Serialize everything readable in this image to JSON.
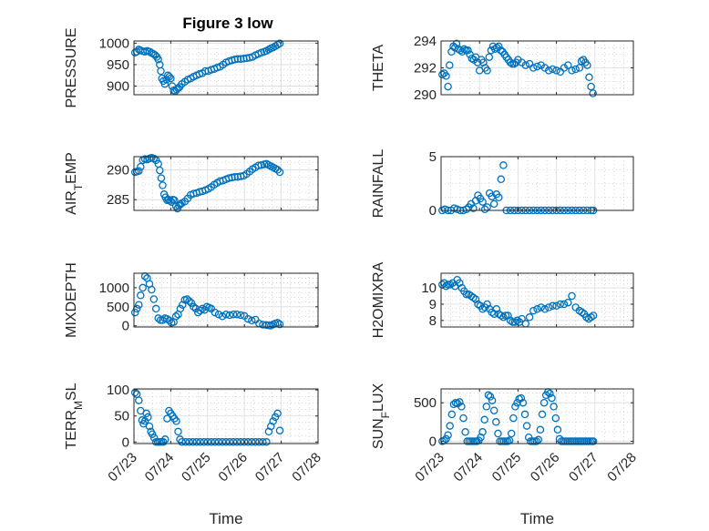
{
  "figure": {
    "title": "Figure 3 low"
  },
  "colors": {
    "marker": "#0072bd",
    "axis": "#262626"
  },
  "chart_data": [
    {
      "type": "scatter",
      "title": "Figure 3 low",
      "ylabel": "PRESSURE",
      "xlabel": "",
      "xlim": [
        0,
        5
      ],
      "ylim": [
        880,
        1005
      ],
      "yticks": [
        900,
        950,
        1000
      ],
      "xticks": [
        0,
        1,
        2,
        3,
        4,
        5
      ],
      "xticklabels": [
        "07/23",
        "07/24",
        "07/25",
        "07/26",
        "07/27",
        "07/28"
      ],
      "grid": true,
      "x": [
        0.03,
        0.08,
        0.13,
        0.18,
        0.24,
        0.3,
        0.36,
        0.42,
        0.48,
        0.53,
        0.58,
        0.62,
        0.66,
        0.7,
        0.73,
        0.76,
        0.8,
        0.84,
        0.88,
        0.92,
        0.96,
        1.0,
        1.04,
        1.08,
        1.12,
        1.16,
        1.2,
        1.24,
        1.3,
        1.38,
        1.46,
        1.54,
        1.62,
        1.7,
        1.78,
        1.86,
        1.94,
        2.02,
        2.1,
        2.18,
        2.26,
        2.34,
        2.42,
        2.5,
        2.58,
        2.66,
        2.74,
        2.82,
        2.9,
        2.98,
        3.06,
        3.14,
        3.22,
        3.3,
        3.38,
        3.46,
        3.54,
        3.6,
        3.66,
        3.72,
        3.78,
        3.84,
        3.9,
        3.96
      ],
      "y": [
        978,
        980,
        985,
        983,
        981,
        980,
        982,
        980,
        977,
        975,
        972,
        968,
        962,
        950,
        935,
        918,
        912,
        905,
        915,
        925,
        922,
        918,
        900,
        890,
        888,
        892,
        895,
        898,
        905,
        910,
        915,
        918,
        922,
        925,
        928,
        930,
        935,
        935,
        938,
        940,
        943,
        945,
        950,
        955,
        958,
        960,
        962,
        963,
        963,
        964,
        965,
        966,
        968,
        972,
        975,
        978,
        980,
        982,
        985,
        988,
        990,
        993,
        996,
        999
      ],
      "series": []
    },
    {
      "type": "scatter",
      "title": "",
      "ylabel": "THETA",
      "xlabel": "",
      "xlim": [
        0,
        5
      ],
      "ylim": [
        290,
        294
      ],
      "yticks": [
        290,
        292,
        294
      ],
      "xticks": [
        0,
        1,
        2,
        3,
        4,
        5
      ],
      "xticklabels": [
        "07/23",
        "07/24",
        "07/25",
        "07/26",
        "07/27",
        "07/28"
      ],
      "grid": true,
      "x": [
        0.03,
        0.08,
        0.13,
        0.18,
        0.22,
        0.27,
        0.32,
        0.36,
        0.4,
        0.45,
        0.5,
        0.55,
        0.6,
        0.65,
        0.7,
        0.75,
        0.8,
        0.85,
        0.9,
        0.95,
        1.0,
        1.05,
        1.1,
        1.15,
        1.2,
        1.25,
        1.3,
        1.35,
        1.4,
        1.45,
        1.5,
        1.55,
        1.6,
        1.65,
        1.7,
        1.75,
        1.8,
        1.85,
        1.9,
        1.95,
        2.0,
        2.1,
        2.2,
        2.3,
        2.4,
        2.5,
        2.6,
        2.7,
        2.8,
        2.9,
        3.0,
        3.1,
        3.2,
        3.3,
        3.4,
        3.5,
        3.6,
        3.65,
        3.7,
        3.75,
        3.8,
        3.85,
        3.9,
        3.95
      ],
      "y": [
        291.5,
        291.6,
        291.4,
        290.6,
        292.2,
        293.2,
        293.6,
        293.5,
        293.8,
        293.4,
        293.3,
        293.2,
        293.4,
        293.3,
        293.3,
        293.0,
        292.7,
        292.6,
        292.8,
        292.4,
        291.8,
        292.6,
        292.4,
        292.0,
        291.8,
        292.8,
        293.3,
        293.6,
        293.4,
        293.5,
        293.6,
        293.3,
        293.2,
        293.0,
        292.8,
        292.6,
        292.4,
        292.3,
        292.3,
        292.4,
        292.6,
        292.4,
        292.2,
        292.3,
        292.0,
        292.1,
        292.2,
        292.0,
        291.8,
        291.9,
        291.8,
        291.7,
        292.0,
        292.2,
        291.8,
        291.9,
        292.0,
        292.5,
        292.6,
        292.4,
        292.2,
        291.3,
        290.6,
        290.1
      ],
      "series": []
    },
    {
      "type": "scatter",
      "title": "",
      "ylabel": "AIR_TEMP",
      "xlabel": "",
      "xlim": [
        0,
        5
      ],
      "ylim": [
        283.2,
        292.2
      ],
      "yticks": [
        285,
        290
      ],
      "xticks": [
        0,
        1,
        2,
        3,
        4,
        5
      ],
      "xticklabels": [
        "07/23",
        "07/24",
        "07/25",
        "07/26",
        "07/27",
        "07/28"
      ],
      "grid": true,
      "x": [
        0.03,
        0.08,
        0.13,
        0.18,
        0.24,
        0.3,
        0.36,
        0.42,
        0.48,
        0.54,
        0.6,
        0.66,
        0.7,
        0.74,
        0.78,
        0.82,
        0.86,
        0.9,
        0.94,
        0.98,
        1.02,
        1.06,
        1.1,
        1.14,
        1.18,
        1.22,
        1.26,
        1.3,
        1.38,
        1.46,
        1.54,
        1.62,
        1.7,
        1.78,
        1.86,
        1.94,
        2.02,
        2.1,
        2.18,
        2.26,
        2.34,
        2.42,
        2.5,
        2.58,
        2.66,
        2.74,
        2.82,
        2.9,
        2.98,
        3.06,
        3.14,
        3.22,
        3.3,
        3.38,
        3.46,
        3.54,
        3.6,
        3.66,
        3.72,
        3.78,
        3.84,
        3.9,
        3.96
      ],
      "y": [
        289.6,
        289.7,
        289.8,
        290.5,
        291.6,
        291.8,
        291.7,
        291.9,
        292.0,
        291.9,
        291.6,
        291.0,
        289.9,
        288.6,
        287.4,
        285.9,
        285.4,
        284.9,
        285.0,
        284.8,
        284.6,
        285.0,
        284.9,
        283.9,
        283.5,
        284.0,
        284.2,
        284.4,
        284.7,
        285.2,
        285.8,
        286.0,
        286.1,
        286.3,
        286.4,
        286.6,
        286.8,
        287.1,
        287.5,
        287.8,
        288.1,
        288.2,
        288.4,
        288.6,
        288.7,
        288.8,
        288.8,
        288.9,
        289.0,
        289.3,
        289.7,
        290.1,
        290.4,
        290.7,
        290.8,
        290.9,
        291.0,
        290.8,
        290.6,
        290.4,
        290.2,
        290.0,
        289.6
      ],
      "series": []
    },
    {
      "type": "scatter",
      "title": "",
      "ylabel": "RAINFALL",
      "xlabel": "",
      "xlim": [
        0,
        5
      ],
      "ylim": [
        0,
        5
      ],
      "yticks": [
        0,
        5
      ],
      "xticks": [
        0,
        1,
        2,
        3,
        4,
        5
      ],
      "xticklabels": [
        "07/23",
        "07/24",
        "07/25",
        "07/26",
        "07/27",
        "07/28"
      ],
      "grid": true,
      "x": [
        0.03,
        0.1,
        0.18,
        0.26,
        0.34,
        0.42,
        0.5,
        0.58,
        0.66,
        0.72,
        0.78,
        0.84,
        0.9,
        0.96,
        1.02,
        1.08,
        1.14,
        1.2,
        1.26,
        1.32,
        1.38,
        1.44,
        1.5,
        1.56,
        1.62,
        1.7,
        1.8,
        1.9,
        2.0,
        2.1,
        2.2,
        2.3,
        2.4,
        2.5,
        2.6,
        2.7,
        2.8,
        2.9,
        3.0,
        3.1,
        3.2,
        3.3,
        3.4,
        3.5,
        3.6,
        3.7,
        3.8,
        3.9,
        3.96
      ],
      "y": [
        0.0,
        0.1,
        0.0,
        0.0,
        0.2,
        0.1,
        0.0,
        0.0,
        0.1,
        0.3,
        0.6,
        0.2,
        0.9,
        1.4,
        1.1,
        0.8,
        0.1,
        0.3,
        1.6,
        1.3,
        0.6,
        1.5,
        1.2,
        2.9,
        4.2,
        0.0,
        0.0,
        0.0,
        0.0,
        0.0,
        0.0,
        0.0,
        0.0,
        0.0,
        0.0,
        0.0,
        0.0,
        0.0,
        0.0,
        0.0,
        0.0,
        0.0,
        0.0,
        0.0,
        0.0,
        0.0,
        0.0,
        0.0,
        0.0
      ],
      "series": []
    },
    {
      "type": "scatter",
      "title": "",
      "ylabel": "MIXDEPTH",
      "xlabel": "",
      "xlim": [
        0,
        5
      ],
      "ylim": [
        -30,
        1380
      ],
      "yticks": [
        0,
        500,
        1000
      ],
      "xticks": [
        0,
        1,
        2,
        3,
        4,
        5
      ],
      "xticklabels": [
        "07/23",
        "07/24",
        "07/25",
        "07/26",
        "07/27",
        "07/28"
      ],
      "grid": true,
      "x": [
        0.03,
        0.08,
        0.13,
        0.18,
        0.24,
        0.3,
        0.36,
        0.42,
        0.48,
        0.54,
        0.6,
        0.66,
        0.72,
        0.78,
        0.84,
        0.9,
        0.96,
        1.02,
        1.08,
        1.14,
        1.2,
        1.26,
        1.32,
        1.38,
        1.44,
        1.5,
        1.56,
        1.62,
        1.68,
        1.74,
        1.8,
        1.86,
        1.92,
        1.98,
        2.04,
        2.1,
        2.2,
        2.3,
        2.4,
        2.5,
        2.6,
        2.7,
        2.8,
        2.9,
        3.0,
        3.1,
        3.2,
        3.3,
        3.4,
        3.5,
        3.6,
        3.66,
        3.72,
        3.78,
        3.84,
        3.9,
        3.96
      ],
      "y": [
        350,
        450,
        550,
        800,
        1000,
        1300,
        1250,
        1100,
        950,
        700,
        450,
        200,
        150,
        150,
        200,
        180,
        140,
        80,
        100,
        250,
        300,
        450,
        550,
        680,
        700,
        650,
        600,
        500,
        450,
        350,
        400,
        450,
        420,
        500,
        480,
        450,
        350,
        300,
        250,
        300,
        280,
        300,
        300,
        280,
        260,
        180,
        140,
        160,
        60,
        30,
        20,
        10,
        5,
        40,
        60,
        80,
        40
      ],
      "series": []
    },
    {
      "type": "scatter",
      "title": "",
      "ylabel": "H2OMIXRA",
      "xlabel": "",
      "xlim": [
        0,
        5
      ],
      "ylim": [
        7.6,
        10.9
      ],
      "yticks": [
        8,
        9,
        10
      ],
      "xticks": [
        0,
        1,
        2,
        3,
        4,
        5
      ],
      "xticklabels": [
        "07/23",
        "07/24",
        "07/25",
        "07/26",
        "07/27",
        "07/28"
      ],
      "grid": true,
      "x": [
        0.03,
        0.08,
        0.13,
        0.18,
        0.24,
        0.3,
        0.36,
        0.42,
        0.48,
        0.54,
        0.6,
        0.66,
        0.72,
        0.78,
        0.84,
        0.9,
        0.96,
        1.02,
        1.08,
        1.14,
        1.2,
        1.26,
        1.32,
        1.38,
        1.44,
        1.5,
        1.56,
        1.62,
        1.68,
        1.74,
        1.8,
        1.86,
        1.92,
        1.98,
        2.04,
        2.1,
        2.2,
        2.3,
        2.4,
        2.5,
        2.6,
        2.7,
        2.8,
        2.9,
        3.0,
        3.1,
        3.2,
        3.3,
        3.4,
        3.5,
        3.6,
        3.66,
        3.72,
        3.78,
        3.84,
        3.9,
        3.96
      ],
      "y": [
        10.2,
        10.3,
        10.1,
        10.2,
        10.2,
        10.3,
        10.1,
        10.5,
        10.3,
        10.0,
        9.8,
        9.6,
        9.6,
        9.5,
        9.4,
        9.3,
        9.0,
        8.9,
        8.7,
        8.8,
        9.0,
        8.7,
        8.5,
        8.4,
        8.7,
        8.4,
        8.3,
        8.2,
        8.3,
        8.3,
        8.0,
        7.9,
        7.9,
        8.0,
        7.9,
        8.1,
        7.8,
        8.2,
        8.6,
        8.7,
        8.8,
        8.7,
        8.8,
        8.9,
        8.9,
        9.0,
        9.0,
        9.1,
        9.5,
        8.8,
        8.6,
        8.5,
        8.4,
        8.2,
        8.1,
        8.2,
        8.3
      ],
      "series": []
    },
    {
      "type": "scatter",
      "title": "",
      "ylabel": "TERR_MSL",
      "xlabel": "Time",
      "xlim": [
        0,
        5
      ],
      "ylim": [
        -3,
        102
      ],
      "yticks": [
        0,
        50,
        100
      ],
      "xticks": [
        0,
        1,
        2,
        3,
        4,
        5
      ],
      "xticklabels": [
        "07/23",
        "07/24",
        "07/25",
        "07/26",
        "07/27",
        "07/28"
      ],
      "grid": true,
      "x": [
        0.03,
        0.08,
        0.13,
        0.18,
        0.22,
        0.26,
        0.3,
        0.34,
        0.38,
        0.42,
        0.46,
        0.5,
        0.55,
        0.6,
        0.65,
        0.7,
        0.75,
        0.8,
        0.85,
        0.9,
        0.95,
        1.0,
        1.05,
        1.1,
        1.15,
        1.2,
        1.25,
        1.3,
        1.4,
        1.5,
        1.6,
        1.7,
        1.8,
        1.9,
        2.0,
        2.1,
        2.2,
        2.3,
        2.4,
        2.5,
        2.6,
        2.7,
        2.8,
        2.9,
        3.0,
        3.1,
        3.2,
        3.3,
        3.4,
        3.5,
        3.6,
        3.66,
        3.72,
        3.78,
        3.84,
        3.9,
        3.96
      ],
      "y": [
        95,
        92,
        80,
        60,
        42,
        35,
        40,
        55,
        48,
        30,
        20,
        15,
        8,
        0,
        0,
        0,
        0,
        0,
        5,
        45,
        60,
        55,
        50,
        45,
        40,
        20,
        5,
        0,
        0,
        0,
        0,
        0,
        0,
        0,
        0,
        0,
        0,
        0,
        0,
        0,
        0,
        0,
        0,
        0,
        0,
        0,
        0,
        0,
        0,
        0,
        0,
        20,
        30,
        40,
        48,
        55,
        22
      ],
      "series": []
    },
    {
      "type": "scatter",
      "title": "",
      "ylabel": "SUN_FLUX",
      "xlabel": "Time",
      "xlim": [
        0,
        5
      ],
      "ylim": [
        -30,
        680
      ],
      "yticks": [
        0,
        500
      ],
      "xticks": [
        0,
        1,
        2,
        3,
        4,
        5
      ],
      "xticklabels": [
        "07/23",
        "07/24",
        "07/25",
        "07/26",
        "07/27",
        "07/28"
      ],
      "grid": true,
      "x": [
        0.03,
        0.08,
        0.13,
        0.18,
        0.23,
        0.28,
        0.33,
        0.38,
        0.43,
        0.48,
        0.53,
        0.58,
        0.63,
        0.68,
        0.73,
        0.78,
        0.83,
        0.88,
        0.93,
        0.98,
        1.03,
        1.08,
        1.13,
        1.18,
        1.23,
        1.28,
        1.33,
        1.38,
        1.43,
        1.48,
        1.53,
        1.58,
        1.63,
        1.68,
        1.73,
        1.78,
        1.83,
        1.88,
        1.93,
        1.98,
        2.03,
        2.08,
        2.13,
        2.18,
        2.23,
        2.28,
        2.33,
        2.38,
        2.43,
        2.48,
        2.53,
        2.58,
        2.63,
        2.68,
        2.73,
        2.78,
        2.83,
        2.88,
        2.93,
        2.98,
        3.03,
        3.08,
        3.13,
        3.18,
        3.23,
        3.28,
        3.33,
        3.38,
        3.43,
        3.48,
        3.53,
        3.58,
        3.63,
        3.68,
        3.73,
        3.78,
        3.83,
        3.88,
        3.93,
        3.96
      ],
      "y": [
        0,
        10,
        30,
        80,
        200,
        350,
        480,
        500,
        490,
        510,
        450,
        300,
        120,
        0,
        0,
        0,
        0,
        0,
        0,
        10,
        50,
        120,
        280,
        450,
        600,
        580,
        530,
        400,
        250,
        100,
        0,
        0,
        0,
        0,
        0,
        10,
        100,
        300,
        450,
        500,
        550,
        560,
        500,
        350,
        200,
        50,
        0,
        0,
        0,
        0,
        20,
        150,
        350,
        500,
        600,
        640,
        620,
        560,
        450,
        300,
        150,
        30,
        0,
        0,
        0,
        0,
        0,
        0,
        0,
        0,
        0,
        0,
        0,
        0,
        0,
        0,
        0,
        0,
        0,
        0
      ],
      "series": []
    }
  ]
}
